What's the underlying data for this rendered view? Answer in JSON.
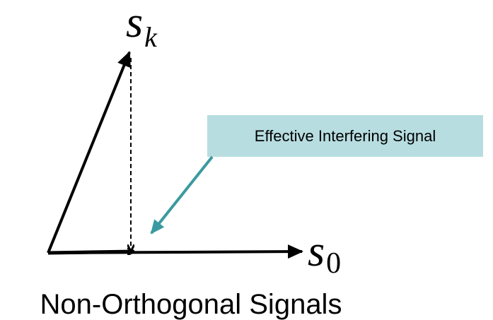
{
  "vectors": [
    {
      "symbol": "s",
      "subscript": "k"
    },
    {
      "symbol": "s",
      "subscript": "0"
    }
  ],
  "callout": {
    "label": "Effective Interfering Signal"
  },
  "caption": "Non-Orthogonal Signals"
}
